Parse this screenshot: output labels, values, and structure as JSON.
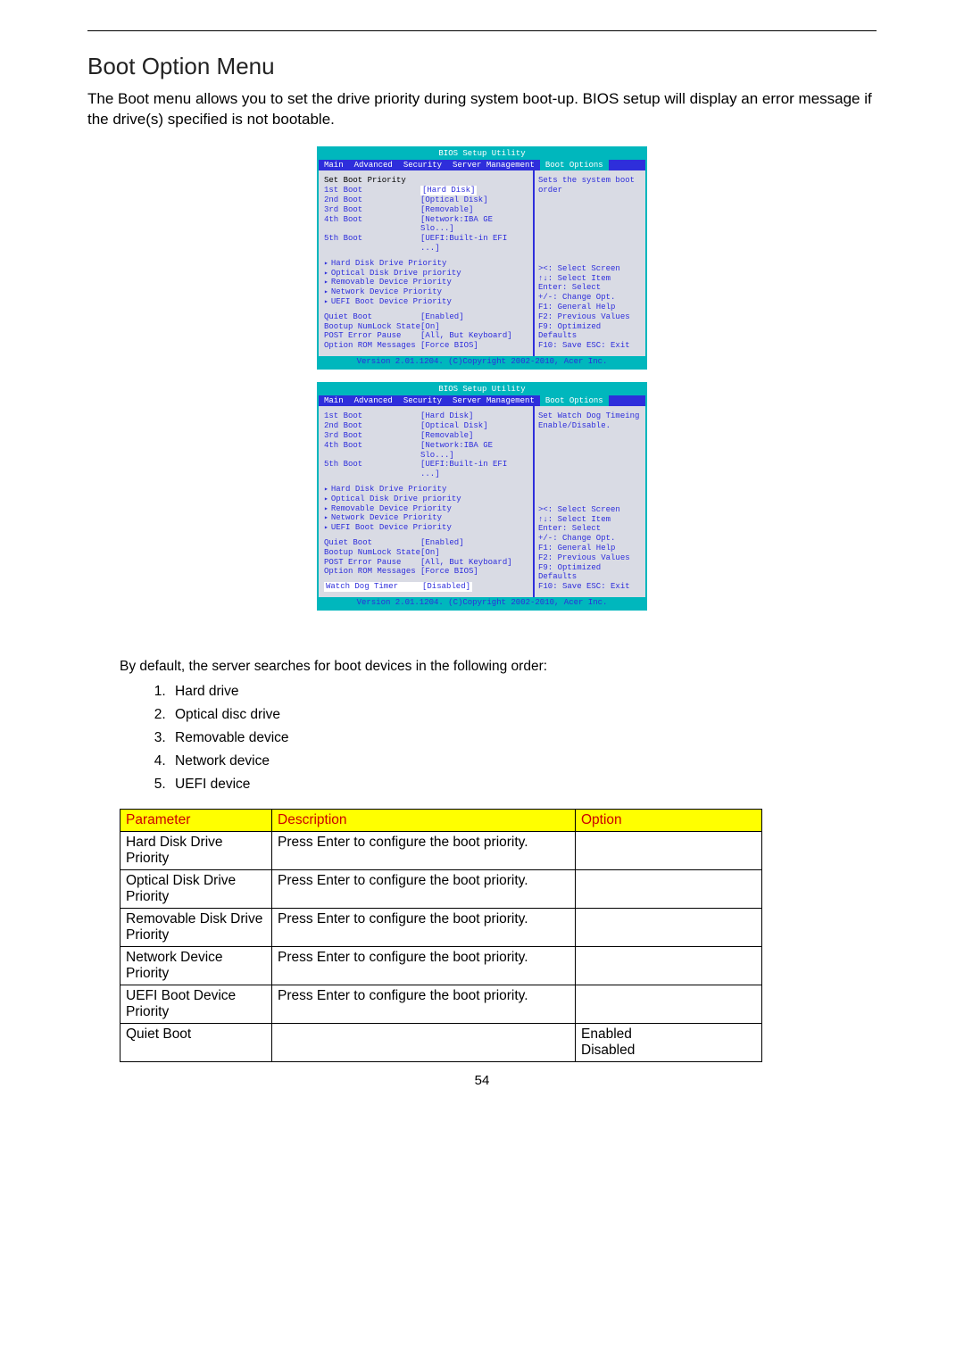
{
  "heading": "Boot Option Menu",
  "intro": "The Boot menu allows you to set the drive priority during system boot-up. BIOS setup will display an error message if the drive(s) specified is not bootable.",
  "bios": {
    "title": "BIOS Setup Utility",
    "tabs": [
      "Main",
      "Advanced",
      "Security",
      "Server Management",
      "Boot Options"
    ],
    "activeTab": 4,
    "footer": "Version 2.01.1204.  (C)Copyright 2002-2010, Acer Inc.",
    "screen1": {
      "header": "Set Boot Priority",
      "boots": [
        {
          "lab": "1st Boot",
          "val": "[Hard Disk]",
          "selected": true
        },
        {
          "lab": "2nd Boot",
          "val": "[Optical Disk]"
        },
        {
          "lab": "3rd Boot",
          "val": "[Removable]"
        },
        {
          "lab": "4th Boot",
          "val": "[Network:IBA GE Slo...]"
        },
        {
          "lab": "5th Boot",
          "val": "[UEFI:Built-in EFI ...]"
        }
      ],
      "submenus": [
        "Hard Disk Drive Priority",
        "Optical Disk Drive priority",
        "Removable Device Priority",
        "Network Device Priority",
        "UEFI Boot Device Priority"
      ],
      "opts": [
        {
          "lab": "Quiet Boot",
          "val": "[Enabled]"
        },
        {
          "lab": "Bootup NumLock State",
          "val": "[On]"
        },
        {
          "lab": "POST Error Pause",
          "val": "[All, But Keyboard]"
        },
        {
          "lab": "Option ROM Messages",
          "val": "[Force BIOS]"
        }
      ],
      "helpTop": "Sets the system boot order",
      "helpKeys": [
        "><: Select Screen",
        "↑↓: Select Item",
        "Enter: Select",
        "+/-: Change Opt.",
        "F1: General Help",
        "F2: Previous Values",
        "F9: Optimized Defaults",
        "F10: Save  ESC: Exit"
      ]
    },
    "screen2": {
      "boots": [
        {
          "lab": "1st Boot",
          "val": "[Hard Disk]"
        },
        {
          "lab": "2nd Boot",
          "val": "[Optical Disk]"
        },
        {
          "lab": "3rd Boot",
          "val": "[Removable]"
        },
        {
          "lab": "4th Boot",
          "val": "[Network:IBA GE Slo...]"
        },
        {
          "lab": "5th Boot",
          "val": "[UEFI:Built-in EFI ...]"
        }
      ],
      "submenus": [
        "Hard Disk Drive Priority",
        "Optical Disk Drive priority",
        "Removable Device Priority",
        "Network Device Priority",
        "UEFI Boot Device Priority"
      ],
      "opts": [
        {
          "lab": "Quiet Boot",
          "val": "[Enabled]"
        },
        {
          "lab": "Bootup NumLock State",
          "val": "[On]"
        },
        {
          "lab": "POST Error Pause",
          "val": "[All, But Keyboard]"
        },
        {
          "lab": "Option ROM Messages",
          "val": "[Force BIOS]"
        }
      ],
      "extra": {
        "lab": "Watch Dog Timer",
        "val": "[Disabled]"
      },
      "helpTop": "Set Watch Dog Timeing Enable/Disable.",
      "helpKeys": [
        "><: Select Screen",
        "↑↓: Select Item",
        "Enter: Select",
        "+/-: Change Opt.",
        "F1: General Help",
        "F2: Previous Values",
        "F9: Optimized Defaults",
        "F10: Save  ESC: Exit"
      ]
    }
  },
  "defaultText": "By default, the server searches for boot devices in the following order:",
  "devices": [
    "Hard drive",
    "Optical disc drive",
    "Removable device",
    "Network device",
    "UEFI device"
  ],
  "table": {
    "headers": [
      "Parameter",
      "Description",
      "Option"
    ],
    "rows": [
      {
        "p": "Hard Disk Drive Priority",
        "d": "Press Enter to configure the boot priority.",
        "o": ""
      },
      {
        "p": "Optical Disk Drive Priority",
        "d": "Press Enter to configure the boot priority.",
        "o": ""
      },
      {
        "p": "Removable Disk Drive Priority",
        "d": "Press Enter to configure the boot priority.",
        "o": ""
      },
      {
        "p": "Network Device Priority",
        "d": "Press Enter to configure the boot priority.",
        "o": ""
      },
      {
        "p": "UEFI Boot Device Priority",
        "d": "Press Enter to configure the boot priority.",
        "o": ""
      },
      {
        "p": "Quiet Boot",
        "d": "",
        "o": "Enabled\nDisabled"
      }
    ]
  },
  "pageNumber": "54"
}
